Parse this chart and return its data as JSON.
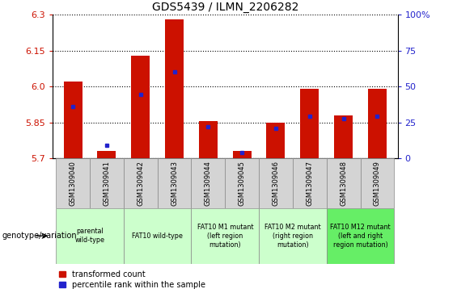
{
  "title": "GDS5439 / ILMN_2206282",
  "samples": [
    "GSM1309040",
    "GSM1309041",
    "GSM1309042",
    "GSM1309043",
    "GSM1309044",
    "GSM1309045",
    "GSM1309046",
    "GSM1309047",
    "GSM1309048",
    "GSM1309049"
  ],
  "red_values": [
    6.02,
    5.73,
    6.13,
    6.28,
    5.855,
    5.73,
    5.85,
    5.99,
    5.88,
    5.99
  ],
  "blue_values": [
    5.915,
    5.755,
    5.965,
    6.06,
    5.83,
    5.725,
    5.825,
    5.875,
    5.865,
    5.875
  ],
  "ymin": 5.7,
  "ymax": 6.3,
  "yticks": [
    5.7,
    5.85,
    6.0,
    6.15,
    6.3
  ],
  "right_yticks": [
    0,
    25,
    50,
    75,
    100
  ],
  "right_ytick_labels": [
    "0",
    "25",
    "50",
    "75",
    "100%"
  ],
  "bar_color": "#cc1100",
  "blue_color": "#2222cc",
  "bar_width": 0.55,
  "group_defs": [
    {
      "start": 0,
      "end": 1,
      "label": "parental\nwild-type",
      "color": "#ccffcc"
    },
    {
      "start": 2,
      "end": 3,
      "label": "FAT10 wild-type",
      "color": "#ccffcc"
    },
    {
      "start": 4,
      "end": 5,
      "label": "FAT10 M1 mutant\n(left region\nmutation)",
      "color": "#ccffcc"
    },
    {
      "start": 6,
      "end": 7,
      "label": "FAT10 M2 mutant\n(right region\nmutation)",
      "color": "#ccffcc"
    },
    {
      "start": 8,
      "end": 9,
      "label": "FAT10 M12 mutant\n(left and right\nregion mutation)",
      "color": "#66ee66"
    }
  ],
  "tick_color_left": "#cc1100",
  "tick_color_right": "#2222cc",
  "legend_items": [
    {
      "label": "transformed count",
      "color": "#cc1100"
    },
    {
      "label": "percentile rank within the sample",
      "color": "#2222cc"
    }
  ],
  "genotype_label": "genotype/variation"
}
